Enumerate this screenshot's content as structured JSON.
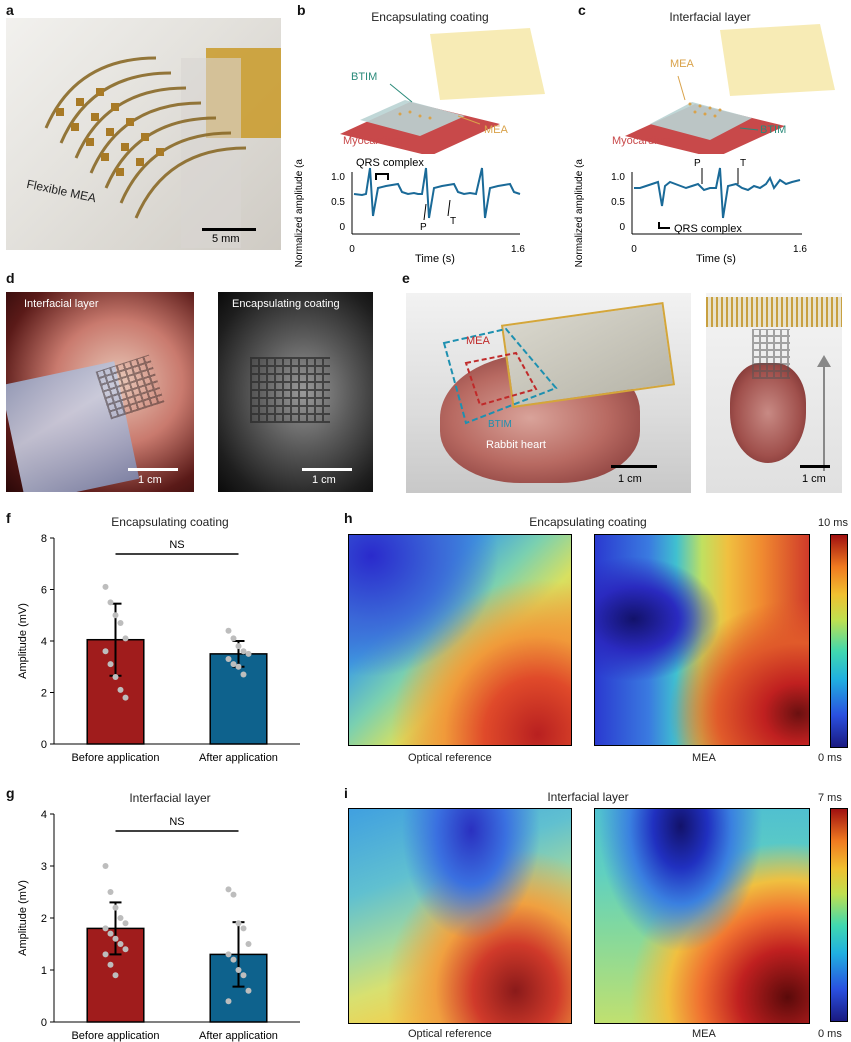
{
  "panels": {
    "a": {
      "label": "a",
      "photo_text": "Flexible MEA",
      "scale": "5 mm"
    },
    "b": {
      "label": "b",
      "title": "Encapsulating coating",
      "btim": "BTIM",
      "mea": "MEA",
      "myocardium": "Myocardium",
      "qrs": "QRS complex",
      "p": "P",
      "t": "T",
      "ylabel": "Normalized amplitude (a.u.)",
      "xlabel": "Time (s)",
      "yticks": [
        "0",
        "0.5",
        "1.0"
      ],
      "xticks": [
        "0",
        "1.6"
      ]
    },
    "c": {
      "label": "c",
      "title": "Interfacial layer",
      "btim": "BTIM",
      "mea": "MEA",
      "myocardium": "Myocardium",
      "qrs": "QRS complex",
      "p": "P",
      "t": "T",
      "ylabel": "Normalized amplitude (a.u.)",
      "xlabel": "Time (s)",
      "yticks": [
        "0",
        "0.5",
        "1.0"
      ],
      "xticks": [
        "0",
        "1.6"
      ]
    },
    "d": {
      "label": "d",
      "left_title": "Interfacial layer",
      "right_title": "Encapsulating coating",
      "scale_left": "1 cm",
      "scale_right": "1 cm"
    },
    "e": {
      "label": "e",
      "mea": "MEA",
      "btim": "BTIM",
      "heart": "Rabbit heart",
      "scale_left": "1 cm",
      "scale_right": "1 cm"
    },
    "f": {
      "label": "f",
      "title": "Encapsulating coating",
      "sig": "NS"
    },
    "g": {
      "label": "g",
      "title": "Interfacial layer",
      "sig": "NS"
    },
    "h": {
      "label": "h",
      "title": "Encapsulating coating",
      "left": "Optical reference",
      "right": "MEA",
      "cb_max": "10 ms",
      "cb_min": "0 ms"
    },
    "i": {
      "label": "i",
      "title": "Interfacial layer",
      "left": "Optical reference",
      "right": "MEA",
      "cb_max": "7 ms",
      "cb_min": "0 ms"
    }
  },
  "chart_data": [
    {
      "type": "bar",
      "panel": "f",
      "title": "Encapsulating coating",
      "categories": [
        "Before application",
        "After application"
      ],
      "values": [
        4.05,
        3.5
      ],
      "errors": [
        1.4,
        0.5
      ],
      "points": [
        [
          6.1,
          5.5,
          5.0,
          4.7,
          4.1,
          3.6,
          3.1,
          2.6,
          2.1,
          1.8
        ],
        [
          4.4,
          4.1,
          3.8,
          3.6,
          3.5,
          3.3,
          3.1,
          3.0,
          2.7
        ]
      ],
      "ylabel": "Amplitude (mV)",
      "ylim": [
        0,
        8
      ],
      "yticks": [
        "0",
        "2",
        "4",
        "6",
        "8"
      ],
      "colors": [
        "#a01c1c",
        "#0e628d"
      ]
    },
    {
      "type": "bar",
      "panel": "g",
      "title": "Interfacial layer",
      "categories": [
        "Before application",
        "After application"
      ],
      "values": [
        1.8,
        1.3
      ],
      "errors": [
        0.5,
        0.62
      ],
      "points": [
        [
          3.0,
          2.5,
          2.2,
          2.0,
          1.9,
          1.8,
          1.7,
          1.6,
          1.5,
          1.4,
          1.3,
          1.1,
          0.9
        ],
        [
          2.55,
          2.45,
          1.9,
          1.8,
          1.5,
          1.3,
          1.2,
          1.0,
          0.9,
          0.6,
          0.4
        ]
      ],
      "ylabel": "Amplitude (mV)",
      "ylim": [
        0,
        4
      ],
      "yticks": [
        "0",
        "1",
        "2",
        "3",
        "4"
      ],
      "colors": [
        "#a01c1c",
        "#0e628d"
      ]
    }
  ],
  "colors": {
    "red_bar": "#a01c1c",
    "blue_bar": "#0e628d",
    "trace": "#1a6a98"
  }
}
